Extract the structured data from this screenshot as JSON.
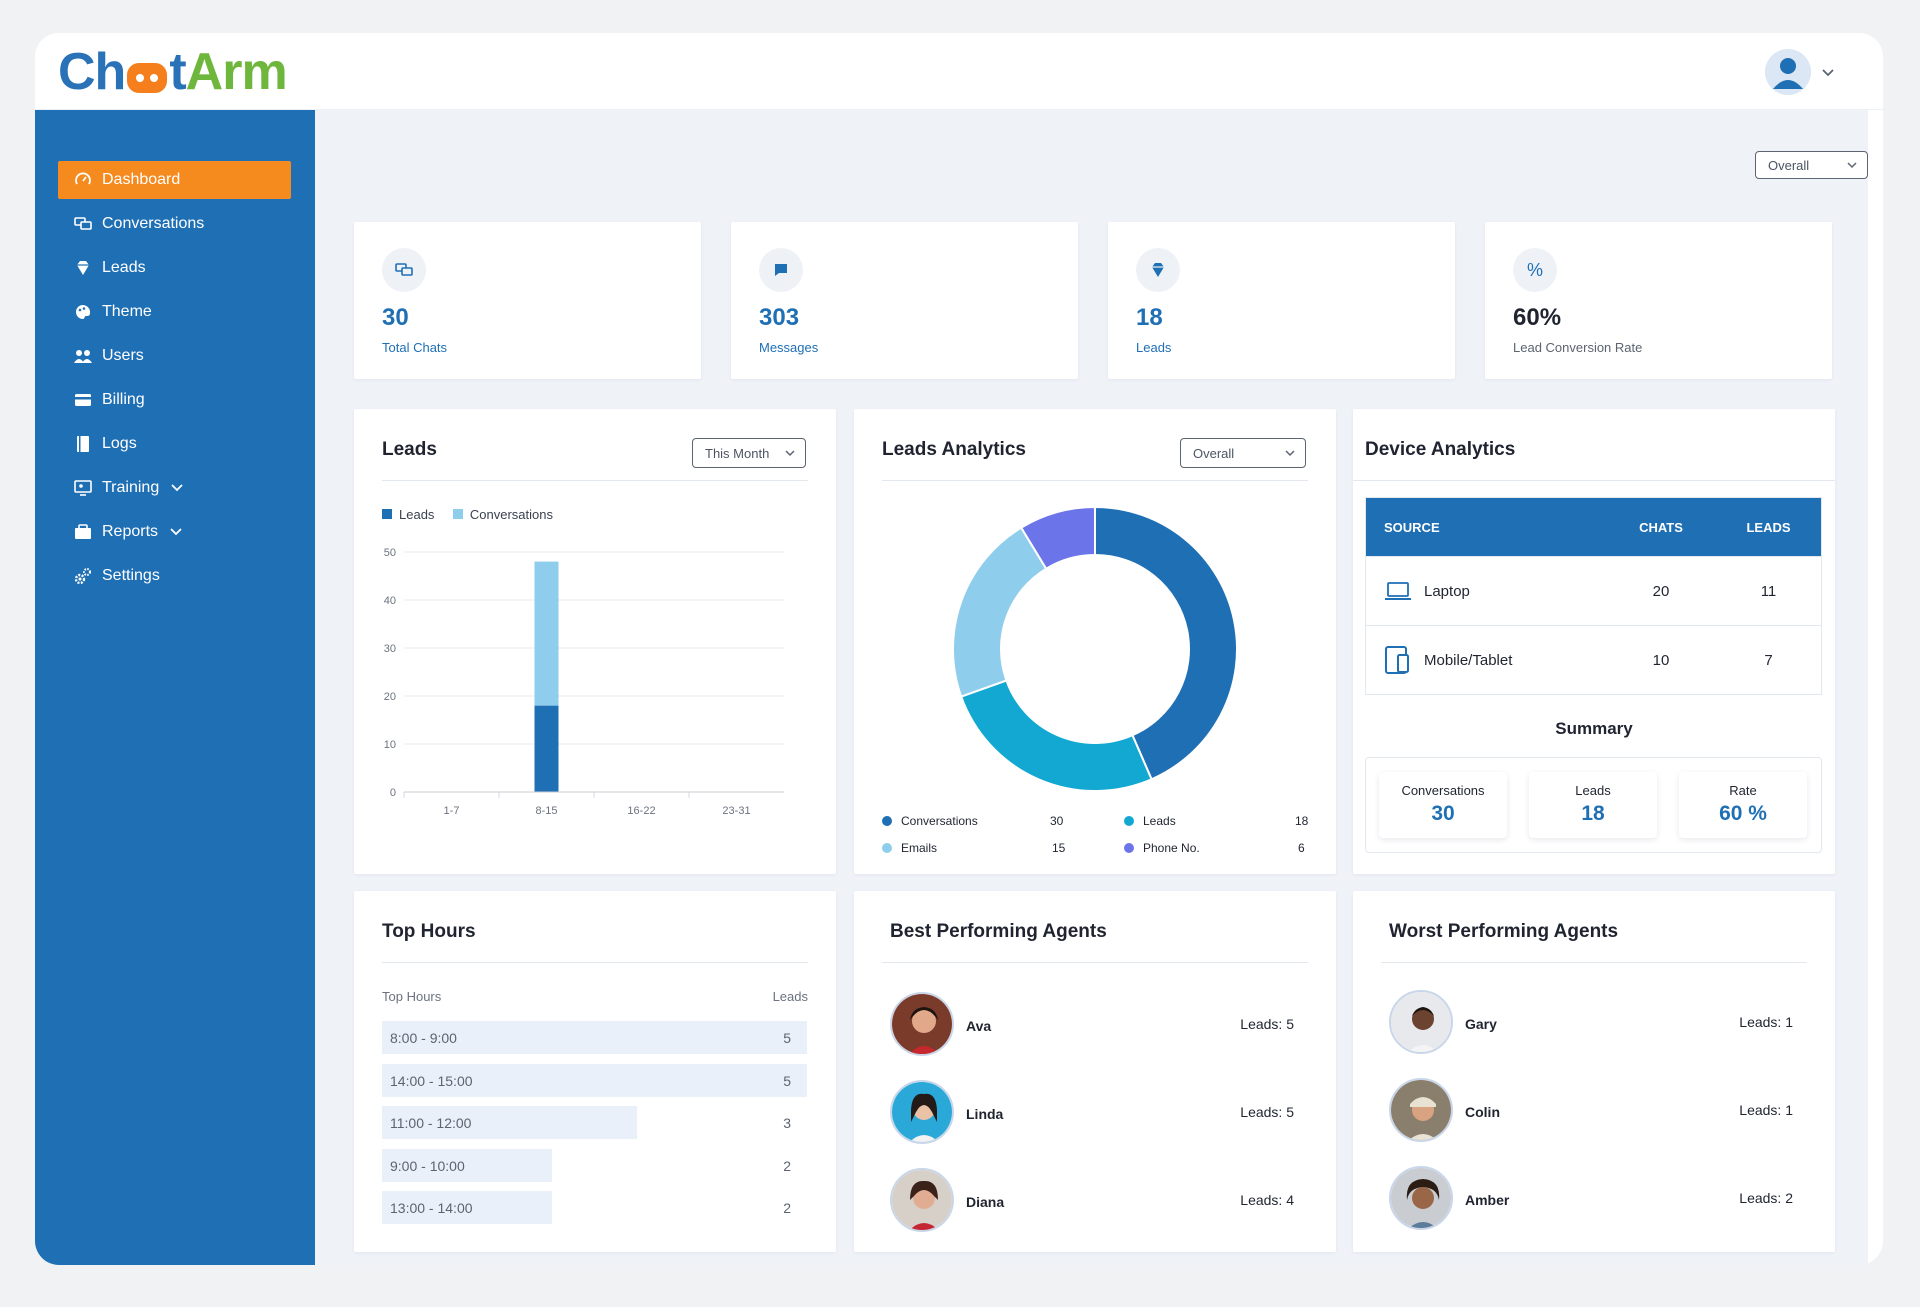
{
  "brand": {
    "part1": "Ch",
    "part2": "t",
    "part3": "Arm"
  },
  "header": {
    "chevron": "⌄"
  },
  "sidebar": {
    "items": [
      {
        "label": "Dashboard",
        "icon": "gauge-icon"
      },
      {
        "label": "Conversations",
        "icon": "chat-icon"
      },
      {
        "label": "Leads",
        "icon": "diamond-icon"
      },
      {
        "label": "Theme",
        "icon": "palette-icon"
      },
      {
        "label": "Users",
        "icon": "users-icon"
      },
      {
        "label": "Billing",
        "icon": "card-icon"
      },
      {
        "label": "Logs",
        "icon": "book-icon"
      },
      {
        "label": "Training",
        "icon": "training-icon"
      },
      {
        "label": "Reports",
        "icon": "reports-icon"
      },
      {
        "label": "Settings",
        "icon": "gears-icon"
      }
    ]
  },
  "filters": {
    "overall_top": "Overall",
    "leads_period": "This Month",
    "analytics_period": "Overall"
  },
  "stats": [
    {
      "value": "30",
      "label": "Total Chats",
      "icon": "chat-icon"
    },
    {
      "value": "303",
      "label": "Messages",
      "icon": "message-icon"
    },
    {
      "value": "18",
      "label": "Leads",
      "icon": "diamond-icon"
    },
    {
      "value": "60%",
      "label": "Lead Conversion Rate",
      "icon": "percent-icon"
    }
  ],
  "leads_card": {
    "title": "Leads"
  },
  "chart_data": [
    {
      "type": "bar",
      "stacked": true,
      "categories": [
        "1-7",
        "8-15",
        "16-22",
        "23-31"
      ],
      "series": [
        {
          "name": "Leads",
          "values": [
            0,
            18,
            0,
            0
          ],
          "color": "#1f6fb5"
        },
        {
          "name": "Conversations",
          "values": [
            0,
            30,
            0,
            0
          ],
          "color": "#8ecdec"
        }
      ],
      "yticks": [
        0,
        10,
        20,
        30,
        40,
        50
      ],
      "ylim": [
        0,
        50
      ],
      "grid": true,
      "legend": "top-left"
    },
    {
      "type": "pie",
      "donut": true,
      "slices": [
        {
          "name": "Conversations",
          "value": 30,
          "color": "#1f6fb5"
        },
        {
          "name": "Leads",
          "value": 18,
          "color": "#12a8d2"
        },
        {
          "name": "Emails",
          "value": 15,
          "color": "#8ecdec"
        },
        {
          "name": "Phone No.",
          "value": 6,
          "color": "#6c74ea"
        }
      ],
      "legend": "bottom"
    }
  ],
  "analytics_card": {
    "title": "Leads Analytics"
  },
  "device": {
    "title": "Device Analytics",
    "headers": {
      "source": "SOURCE",
      "chats": "CHATS",
      "leads": "LEADS"
    },
    "rows": [
      {
        "source": "Laptop",
        "chats": "20",
        "leads": "11",
        "icon": "laptop-icon"
      },
      {
        "source": "Mobile/Tablet",
        "chats": "10",
        "leads": "7",
        "icon": "mobile-icon"
      }
    ],
    "summary_title": "Summary",
    "summary": [
      {
        "label": "Conversations",
        "value": "30"
      },
      {
        "label": "Leads",
        "value": "18"
      },
      {
        "label": "Rate",
        "value": "60 %"
      }
    ]
  },
  "top_hours": {
    "title": "Top Hours",
    "col_left": "Top Hours",
    "col_right": "Leads",
    "max": 5,
    "rows": [
      {
        "label": "8:00 - 9:00",
        "value": 5
      },
      {
        "label": "14:00 - 15:00",
        "value": 5
      },
      {
        "label": "11:00 - 12:00",
        "value": 3
      },
      {
        "label": "9:00 - 10:00",
        "value": 2
      },
      {
        "label": "13:00 - 14:00",
        "value": 2
      }
    ]
  },
  "best_agents": {
    "title": "Best Performing Agents",
    "agents": [
      {
        "name": "Ava",
        "leads": "Leads: 5"
      },
      {
        "name": "Linda",
        "leads": "Leads: 5"
      },
      {
        "name": "Diana",
        "leads": "Leads: 4"
      }
    ]
  },
  "worst_agents": {
    "title": "Worst Performing Agents",
    "agents": [
      {
        "name": "Gary",
        "leads": "Leads: 1"
      },
      {
        "name": "Colin",
        "leads": "Leads: 1"
      },
      {
        "name": "Amber",
        "leads": "Leads: 2"
      }
    ]
  },
  "colors": {
    "primary": "#1f6fb5",
    "accent": "#f58a1f",
    "light_blue": "#8ecdec",
    "cyan": "#12a8d2",
    "violet": "#6c74ea",
    "green": "#6fb63c"
  }
}
